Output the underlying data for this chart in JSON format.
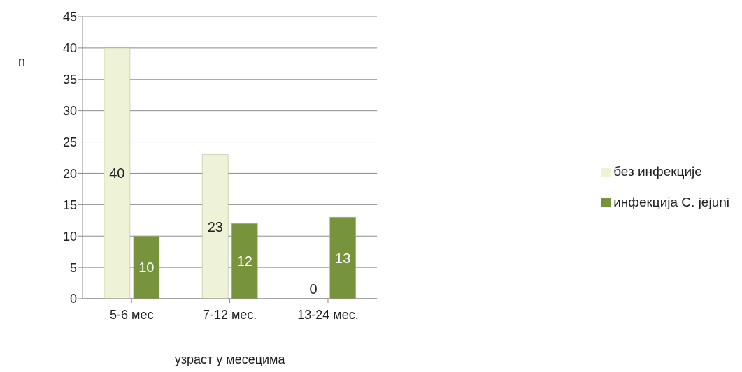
{
  "chart_data": {
    "type": "bar",
    "ylabel": "n",
    "xlabel": "узраст у месецима",
    "categories": [
      "5-6 мес",
      "7-12 мес.",
      "13-24 мес."
    ],
    "series": [
      {
        "name": "без инфекције",
        "color": "#eef3d8",
        "values": [
          40,
          23,
          0
        ]
      },
      {
        "name": "инфекција C. jejuni",
        "color": "#77933c",
        "values": [
          10,
          12,
          13
        ]
      }
    ],
    "ylim": [
      0,
      45
    ],
    "yticks": [
      0,
      5,
      10,
      15,
      20,
      25,
      30,
      35,
      40,
      45
    ],
    "grid": "y",
    "legend": "right",
    "data_labels": true
  }
}
